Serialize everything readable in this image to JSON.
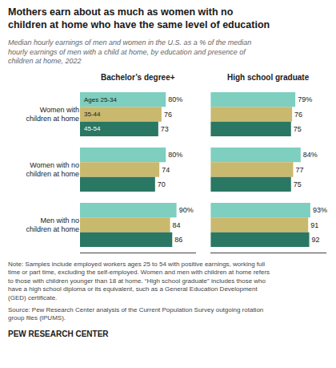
{
  "title": "Mothers earn about as much as women with no\nchildren at home who have the same level of education",
  "subtitle": "Median hourly earnings of men and women in the U.S. as a % of the median\nhourly earnings of men with a child at home, by education and presence of\nchildren at home, 2022",
  "annotations": [
    "Note: Samples include employed workers ages 25 to 54 with positive earnings, working full\ntime or part time, excluding the self-employed. Women and men with children at home refers\nto those with children younger than 18 at home. “High school graduate” includes those who\nhave a high school diploma or its equivalent, such as a General Education Development\n(GED) certificate.",
    "Source: Pew Research Center analysis of the Current Population Survey outgoing rotation\ngroup files (IPUMS).",
    "PEW RESEARCH CENTER"
  ],
  "chart_data": [
    {
      "type": "bar",
      "orientation": "horizontal",
      "title": "Bachelor’s degree+",
      "categories": [
        "Women with\nchildren at home",
        "Women with no\nchildren at home",
        "Men with no\nchildren at home"
      ],
      "series": [
        {
          "name": "Ages 25-34",
          "color": "#7ecfc0",
          "values": [
            80,
            80,
            90
          ],
          "value_labels": [
            "80%",
            "80%",
            "90%"
          ]
        },
        {
          "name": "35-44",
          "color": "#c9b96e",
          "values": [
            76,
            74,
            84
          ]
        },
        {
          "name": "45-54",
          "color": "#2a7764",
          "values": [
            73,
            70,
            86
          ]
        }
      ],
      "xlim": [
        0,
        108
      ],
      "data_labels": true,
      "tick_labels": "y",
      "grid": false
    },
    {
      "type": "bar",
      "orientation": "horizontal",
      "title": "High school graduate",
      "categories": [
        "Women with\nchildren at home",
        "Women with no\nchildren at home",
        "Men with no\nchildren at home"
      ],
      "series": [
        {
          "color": "#7ecfc0",
          "values": [
            79,
            84,
            93
          ],
          "value_labels": [
            "79%",
            "84%",
            "93%"
          ]
        },
        {
          "color": "#c9b96e",
          "values": [
            76,
            77,
            91
          ]
        },
        {
          "color": "#2a7764",
          "values": [
            75,
            75,
            92
          ]
        }
      ],
      "xlim": [
        0,
        108
      ],
      "data_labels": true,
      "tick_labels": false,
      "grid": false
    }
  ]
}
